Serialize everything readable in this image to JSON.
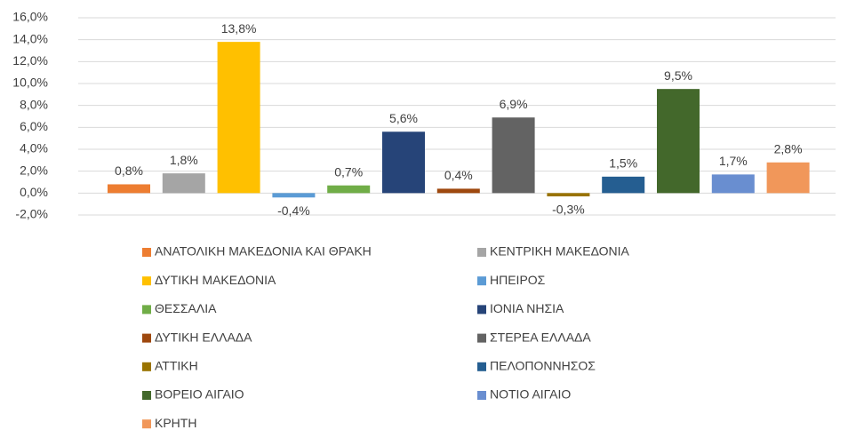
{
  "chart_data": {
    "type": "bar",
    "ylim": [
      -2,
      16
    ],
    "yticks": [
      {
        "value": -2,
        "label": "-2,0%"
      },
      {
        "value": 0,
        "label": "0,0%"
      },
      {
        "value": 2,
        "label": "2,0%"
      },
      {
        "value": 4,
        "label": "4,0%"
      },
      {
        "value": 6,
        "label": "6,0%"
      },
      {
        "value": 8,
        "label": "8,0%"
      },
      {
        "value": 10,
        "label": "10,0%"
      },
      {
        "value": 12,
        "label": "12,0%"
      },
      {
        "value": 14,
        "label": "14,0%"
      },
      {
        "value": 16,
        "label": "16,0%"
      }
    ],
    "grid": true,
    "legend": "bottom",
    "series": [
      {
        "name": "ΑΝΑΤΟΛΙΚΗ ΜΑΚΕΔΟΝΙΑ ΚΑΙ ΘΡΑΚΗ",
        "color": "#ED7D31",
        "values": [
          0.8
        ],
        "value_labels": [
          "0,8%"
        ]
      },
      {
        "name": "ΚΕΝΤΡΙΚΗ ΜΑΚΕΔΟΝΙΑ",
        "color": "#A5A5A5",
        "values": [
          1.8
        ],
        "value_labels": [
          "1,8%"
        ]
      },
      {
        "name": "ΔΥΤΙΚΗ ΜΑΚΕΔΟΝΙΑ",
        "color": "#FFC000",
        "values": [
          13.8
        ],
        "value_labels": [
          "13,8%"
        ]
      },
      {
        "name": "ΗΠΕΙΡΟΣ",
        "color": "#5B9BD5",
        "values": [
          -0.4
        ],
        "value_labels": [
          "-0,4%"
        ]
      },
      {
        "name": "ΘΕΣΣΑΛΙΑ",
        "color": "#70AD47",
        "values": [
          0.7
        ],
        "value_labels": [
          "0,7%"
        ]
      },
      {
        "name": "ΙΟΝΙΑ ΝΗΣΙΑ",
        "color": "#264478",
        "values": [
          5.6
        ],
        "value_labels": [
          "5,6%"
        ]
      },
      {
        "name": "ΔΥΤΙΚΗ ΕΛΛΑΔΑ",
        "color": "#9E480E",
        "values": [
          0.4
        ],
        "value_labels": [
          "0,4%"
        ]
      },
      {
        "name": "ΣΤΕΡΕΑ ΕΛΛΑΔΑ",
        "color": "#636363",
        "values": [
          6.9
        ],
        "value_labels": [
          "6,9%"
        ]
      },
      {
        "name": "ΑΤΤΙΚΗ",
        "color": "#997300",
        "values": [
          -0.3
        ],
        "value_labels": [
          "-0,3%"
        ]
      },
      {
        "name": "ΠΕΛΟΠΟΝΝΗΣΟΣ",
        "color": "#255E91",
        "values": [
          1.5
        ],
        "value_labels": [
          "1,5%"
        ]
      },
      {
        "name": "ΒΟΡΕΙΟ ΑΙΓΑΙΟ",
        "color": "#43682B",
        "values": [
          9.5
        ],
        "value_labels": [
          "9,5%"
        ]
      },
      {
        "name": "ΝΟΤΙΟ ΑΙΓΑΙΟ",
        "color": "#698ED0",
        "values": [
          1.7
        ],
        "value_labels": [
          "1,7%"
        ]
      },
      {
        "name": "ΚΡΗΤΗ",
        "color": "#F1975A",
        "values": [
          2.8
        ],
        "value_labels": [
          "2,8%"
        ]
      }
    ]
  }
}
